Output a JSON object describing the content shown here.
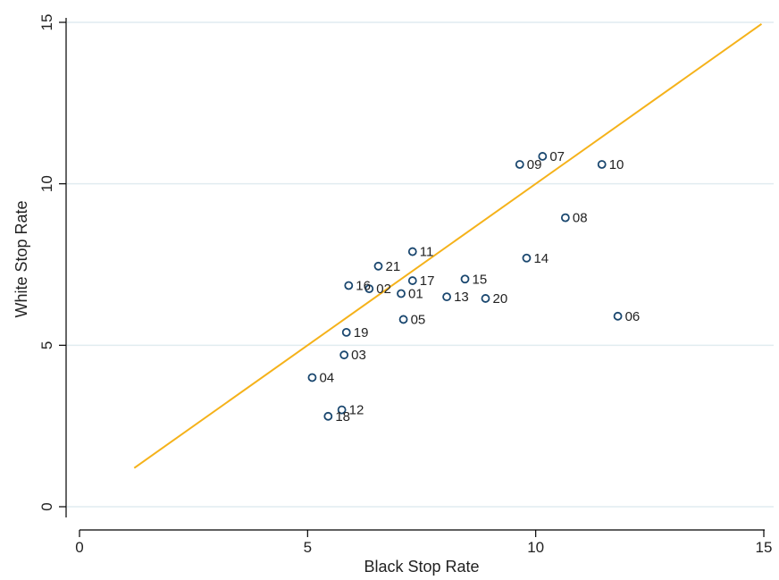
{
  "chart_data": {
    "type": "scatter",
    "title": "",
    "xlabel": "Black Stop Rate",
    "ylabel": "White Stop Rate",
    "xlim": [
      0,
      15
    ],
    "ylim": [
      0,
      15
    ],
    "x_ticks": [
      "0",
      "5",
      "10",
      "15"
    ],
    "y_ticks": [
      "0",
      "5",
      "10",
      "15"
    ],
    "grid": "horizontal",
    "legend": "none",
    "colors": {
      "marker": "#1a476f",
      "line": "#f5b21a",
      "grid": "#e1ecf0"
    },
    "reference_line": {
      "from": [
        1.2,
        1.2
      ],
      "to": [
        14.95,
        14.95
      ]
    },
    "points": [
      {
        "label": "01",
        "x": 7.05,
        "y": 6.6
      },
      {
        "label": "02",
        "x": 6.35,
        "y": 6.75
      },
      {
        "label": "03",
        "x": 5.8,
        "y": 4.7
      },
      {
        "label": "04",
        "x": 5.1,
        "y": 4.0
      },
      {
        "label": "05",
        "x": 7.1,
        "y": 5.8
      },
      {
        "label": "06",
        "x": 11.8,
        "y": 5.9
      },
      {
        "label": "07",
        "x": 10.15,
        "y": 10.85
      },
      {
        "label": "08",
        "x": 10.65,
        "y": 8.95
      },
      {
        "label": "09",
        "x": 9.65,
        "y": 10.6
      },
      {
        "label": "10",
        "x": 11.45,
        "y": 10.6
      },
      {
        "label": "11",
        "x": 7.3,
        "y": 7.9
      },
      {
        "label": "12",
        "x": 5.75,
        "y": 3.0
      },
      {
        "label": "13",
        "x": 8.05,
        "y": 6.5
      },
      {
        "label": "14",
        "x": 9.8,
        "y": 7.7
      },
      {
        "label": "15",
        "x": 8.45,
        "y": 7.05
      },
      {
        "label": "16",
        "x": 5.9,
        "y": 6.85
      },
      {
        "label": "17",
        "x": 7.3,
        "y": 7.0
      },
      {
        "label": "18",
        "x": 5.45,
        "y": 2.8
      },
      {
        "label": "19",
        "x": 5.85,
        "y": 5.4
      },
      {
        "label": "20",
        "x": 8.9,
        "y": 6.45
      },
      {
        "label": "21",
        "x": 6.55,
        "y": 7.45
      }
    ]
  }
}
